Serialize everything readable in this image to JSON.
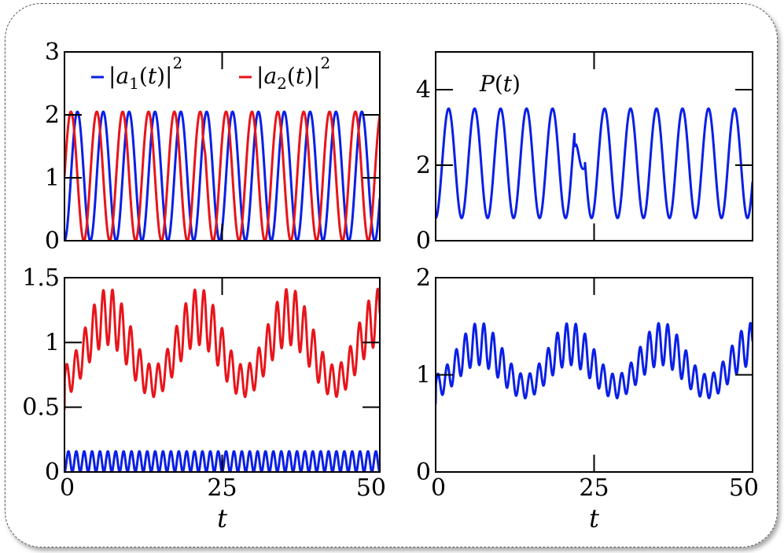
{
  "colors": {
    "blue": "#0a1fe6",
    "red": "#e8141a"
  },
  "chart_data": [
    {
      "type": "line",
      "panel": "top-left",
      "xlim": [
        0,
        50
      ],
      "ylim": [
        0,
        3
      ],
      "x_ticks": [
        0,
        25,
        50
      ],
      "x_tick_labels": [],
      "y_ticks": [
        0,
        1,
        2,
        3
      ],
      "y_tick_labels": [
        "0",
        "1",
        "2",
        "3"
      ],
      "xlabel": "",
      "legend_position": "top",
      "series": [
        {
          "name": "|a1(t)|^2",
          "color_key": "blue",
          "model": "rabi",
          "min": 0,
          "max": 2.05,
          "period": 4.1,
          "phase_deg": 0
        },
        {
          "name": "|a2(t)|^2",
          "color_key": "red",
          "model": "rabi",
          "min": 0,
          "max": 2.05,
          "period": 4.1,
          "phase_deg": 90,
          "glitch_at": 23.3,
          "glitch_peak": 1.38
        }
      ]
    },
    {
      "type": "line",
      "panel": "top-right",
      "xlim": [
        0,
        50
      ],
      "ylim": [
        0,
        5
      ],
      "x_ticks": [
        0,
        25,
        50
      ],
      "x_tick_labels": [],
      "y_ticks": [
        0,
        2,
        4
      ],
      "y_tick_labels": [
        "0",
        "2",
        "4"
      ],
      "xlabel": "",
      "annotation": "P(t)",
      "series": [
        {
          "name": "P(t)",
          "color_key": "blue",
          "model": "rabi",
          "min": 0.6,
          "max": 3.5,
          "period": 4.1,
          "phase_deg": 0,
          "glitch_at": 23.3,
          "glitch_value": 1.9,
          "glitch_peak": 3.1
        }
      ]
    },
    {
      "type": "line",
      "panel": "bottom-left",
      "xlim": [
        0,
        50
      ],
      "ylim": [
        0,
        1.5
      ],
      "x_ticks": [
        0,
        25,
        50
      ],
      "x_tick_labels": [
        "0",
        "25",
        "50"
      ],
      "y_ticks": [
        0,
        0.5,
        1,
        1.5
      ],
      "y_tick_labels": [
        "0",
        "0.5",
        "1",
        "1.5"
      ],
      "xlabel": "t",
      "series": [
        {
          "name": "red",
          "color_key": "red",
          "model": "beat",
          "base": 0.95,
          "slow_amp": 0.25,
          "slow_period": 14.4,
          "fast_amp": 0.22,
          "fast_period": 1.45,
          "start": 0.48
        },
        {
          "name": "blue",
          "color_key": "blue",
          "model": "fast",
          "min": 0.0,
          "max": 0.16,
          "period": 1.25
        }
      ]
    },
    {
      "type": "line",
      "panel": "bottom-right",
      "xlim": [
        0,
        50
      ],
      "ylim": [
        0,
        2
      ],
      "x_ticks": [
        0,
        25,
        50
      ],
      "x_tick_labels": [
        "0",
        "25",
        "50"
      ],
      "y_ticks": [
        0,
        1,
        2
      ],
      "y_tick_labels": [
        "0",
        "1",
        "2"
      ],
      "xlabel": "t",
      "series": [
        {
          "name": "blue",
          "color_key": "blue",
          "model": "beat",
          "base": 1.1,
          "slow_amp": 0.22,
          "slow_period": 14.4,
          "fast_amp": 0.22,
          "fast_period": 1.45,
          "start": 0.7
        }
      ]
    }
  ]
}
